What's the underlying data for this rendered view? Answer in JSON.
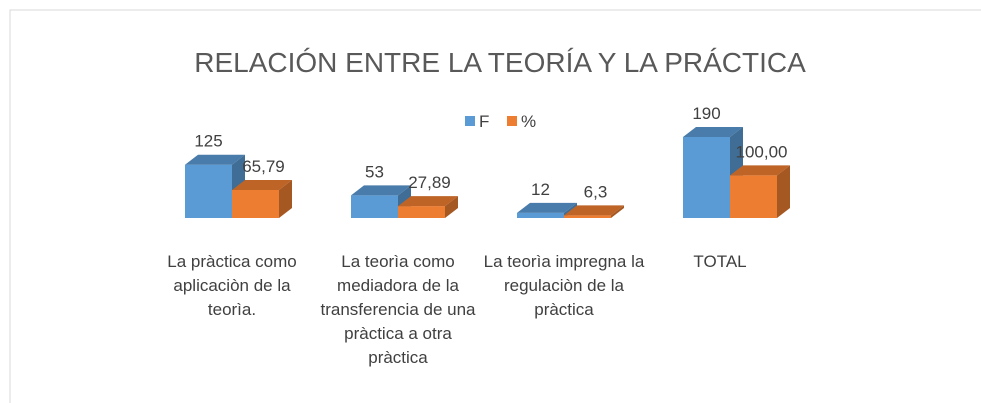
{
  "chart_data": {
    "type": "bar3d",
    "title": "RELACIÓN ENTRE LA TEORÍA Y LA PRÁCTICA",
    "categories": [
      "La pràctica como aplicaciòn de la teorìa.",
      "La teorìa como mediadora de la transferencia de una pràctica a otra pràctica",
      "La teorìa impregna la regulaciòn de la pràctica",
      "TOTAL"
    ],
    "series": [
      {
        "name": "F",
        "color": "#5b9bd5",
        "values": [
          125,
          53,
          12,
          190
        ]
      },
      {
        "name": "%",
        "color": "#ed7d31",
        "values": [
          65.79,
          27.89,
          6.3,
          100.0
        ],
        "value_labels": [
          "65,79",
          "27,89",
          "6,3",
          "100,00"
        ]
      }
    ],
    "legend": "top"
  }
}
